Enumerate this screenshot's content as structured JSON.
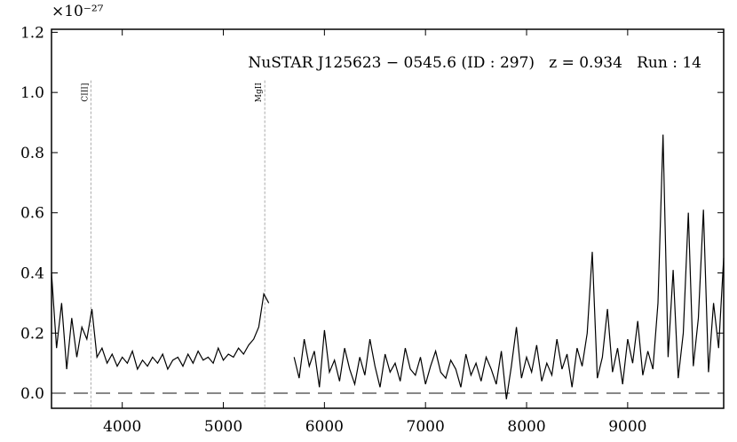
{
  "chart_data": {
    "type": "line",
    "annotation": "NuSTAR J125623 − 0545.6 (ID : 297)   z = 0.934   Run : 14",
    "y_scale_label": "×10⁻²⁷",
    "x": [
      3300,
      3350,
      3400,
      3450,
      3500,
      3550,
      3600,
      3650,
      3700,
      3750,
      3800,
      3850,
      3900,
      3950,
      4000,
      4050,
      4100,
      4150,
      4200,
      4250,
      4300,
      4350,
      4400,
      4450,
      4500,
      4550,
      4600,
      4650,
      4700,
      4750,
      4800,
      4850,
      4900,
      4950,
      5000,
      5050,
      5100,
      5150,
      5200,
      5250,
      5300,
      5350,
      5400,
      5450,
      5500,
      5550,
      5600,
      5650,
      5700,
      5750,
      5800,
      5850,
      5900,
      5950,
      6000,
      6050,
      6100,
      6150,
      6200,
      6250,
      6300,
      6350,
      6400,
      6450,
      6500,
      6550,
      6600,
      6650,
      6700,
      6750,
      6800,
      6850,
      6900,
      6950,
      7000,
      7050,
      7100,
      7150,
      7200,
      7250,
      7300,
      7350,
      7400,
      7450,
      7500,
      7550,
      7600,
      7650,
      7700,
      7750,
      7800,
      7850,
      7900,
      7950,
      8000,
      8050,
      8100,
      8150,
      8200,
      8250,
      8300,
      8350,
      8400,
      8450,
      8500,
      8550,
      8600,
      8650,
      8700,
      8750,
      8800,
      8850,
      8900,
      8950,
      9000,
      9050,
      9100,
      9150,
      9200,
      9250,
      9300,
      9350,
      9400,
      9450,
      9500,
      9550,
      9600,
      9650,
      9700,
      9750,
      9800,
      9850,
      9900,
      9950
    ],
    "series": [
      {
        "color": "#000000",
        "values": [
          0.4,
          0.15,
          0.3,
          0.08,
          0.25,
          0.12,
          0.22,
          0.18,
          0.28,
          0.12,
          0.15,
          0.1,
          0.13,
          0.09,
          0.12,
          0.1,
          0.14,
          0.08,
          0.11,
          0.09,
          0.12,
          0.1,
          0.13,
          0.08,
          0.11,
          0.12,
          0.09,
          0.13,
          0.1,
          0.14,
          0.11,
          0.12,
          0.1,
          0.15,
          0.11,
          0.13,
          0.12,
          0.15,
          0.13,
          0.16,
          0.18,
          0.22,
          0.33,
          0.3,
          null,
          null,
          null,
          null,
          0.12,
          0.05,
          0.18,
          0.09,
          0.14,
          0.02,
          0.21,
          0.07,
          0.11,
          0.04,
          0.15,
          0.08,
          0.03,
          0.12,
          0.06,
          0.18,
          0.09,
          0.02,
          0.13,
          0.07,
          0.1,
          0.04,
          0.15,
          0.08,
          0.06,
          0.12,
          0.03,
          0.09,
          0.14,
          0.07,
          0.05,
          0.11,
          0.08,
          0.02,
          0.13,
          0.06,
          0.1,
          0.04,
          0.12,
          0.08,
          0.03,
          0.14,
          -0.02,
          0.09,
          0.22,
          0.05,
          0.12,
          0.07,
          0.16,
          0.04,
          0.1,
          0.06,
          0.18,
          0.08,
          0.13,
          0.02,
          0.15,
          0.09,
          0.2,
          0.47,
          0.05,
          0.12,
          0.28,
          0.07,
          0.15,
          0.03,
          0.18,
          0.1,
          0.24,
          0.06,
          0.14,
          0.08,
          0.3,
          0.86,
          0.12,
          0.41,
          0.05,
          0.2,
          0.6,
          0.09,
          0.25,
          0.61,
          0.07,
          0.3,
          0.15,
          0.45
        ]
      }
    ],
    "reference_y": 0,
    "lines": [
      {
        "label": "CIII]",
        "x": 3690
      },
      {
        "label": "MgII",
        "x": 5410
      }
    ],
    "xlim": [
      3300,
      9950
    ],
    "ylim": [
      -0.05,
      1.21
    ],
    "xticks": [
      4000,
      5000,
      6000,
      7000,
      8000,
      9000
    ],
    "yticks": [
      {
        "value": 0,
        "label": "0.0"
      },
      {
        "value": 0.2,
        "label": "0.2"
      },
      {
        "value": 0.4,
        "label": "0.4"
      },
      {
        "value": 0.6,
        "label": "0.6"
      },
      {
        "value": 0.8,
        "label": "0.8"
      },
      {
        "value": 1,
        "label": "1.0"
      },
      {
        "value": 1.2,
        "label": "1.2"
      }
    ]
  }
}
